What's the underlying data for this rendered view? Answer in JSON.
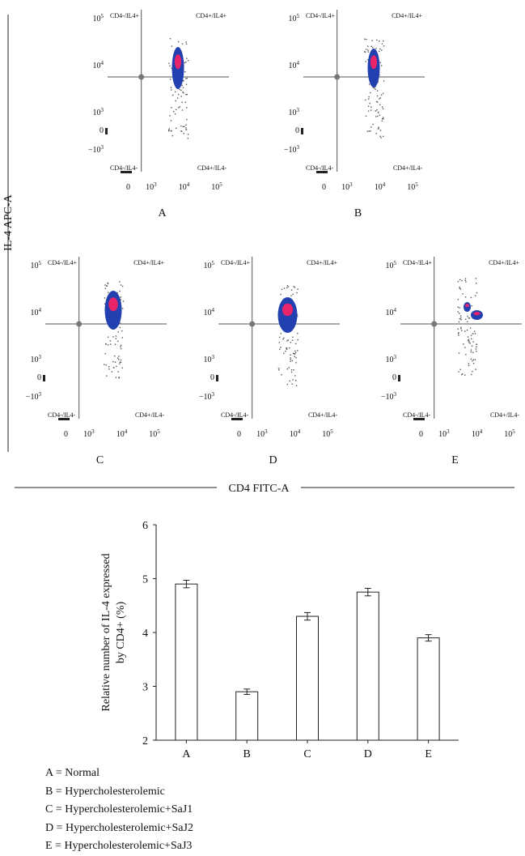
{
  "chart_data": [
    {
      "type": "scatter",
      "subtype": "flow-cytometry-quadrant-plots",
      "xlabel": "CD4 FITC-A",
      "ylabel": "IL-4 APC-A",
      "x_tick_labels": [
        "0",
        "10^3",
        "10^4",
        "10^5"
      ],
      "y_tick_labels": [
        "10^5",
        "10^4",
        "10^3",
        "0",
        "-10^3"
      ],
      "quadrant_labels": {
        "top_left": "CD4-/IL4+",
        "top_right": "CD4+/IL4+",
        "bottom_left": "CD4-/IL4-",
        "bottom_right": "CD4+/IL4-"
      },
      "panels": [
        {
          "label": "A",
          "gate_x": 500,
          "gate_y": 5500
        },
        {
          "label": "B",
          "gate_x": 500,
          "gate_y": 5500
        },
        {
          "label": "C",
          "gate_x": 500,
          "gate_y": 5500
        },
        {
          "label": "D",
          "gate_x": 500,
          "gate_y": 5500
        },
        {
          "label": "E",
          "gate_x": 500,
          "gate_y": 5500
        }
      ]
    },
    {
      "type": "bar",
      "categories": [
        "A",
        "B",
        "C",
        "D",
        "E"
      ],
      "values": [
        4.9,
        2.9,
        4.3,
        4.75,
        3.9
      ],
      "errors": [
        0.07,
        0.05,
        0.07,
        0.07,
        0.06
      ],
      "ylabel_lines": [
        "Relative number of IL-4 expressed",
        "by CD4+ (%)"
      ],
      "ylim": [
        2,
        6
      ],
      "yticks": [
        2,
        3,
        4,
        5,
        6
      ],
      "xlabel": "",
      "title": ""
    }
  ],
  "legend": [
    "A = Normal",
    "B = Hypercholesterolemic",
    "C = Hypercholesterolemic+SaJ1",
    "D = Hypercholesterolemic+SaJ2",
    "E = Hypercholesterolemic+SaJ3"
  ],
  "colors": {
    "axis": "#222222",
    "gate_line": "#555555",
    "dots": "#555555",
    "density_blue": "#2340b0",
    "density_pink": "#e8246a",
    "bar_fill": "#ffffff"
  }
}
